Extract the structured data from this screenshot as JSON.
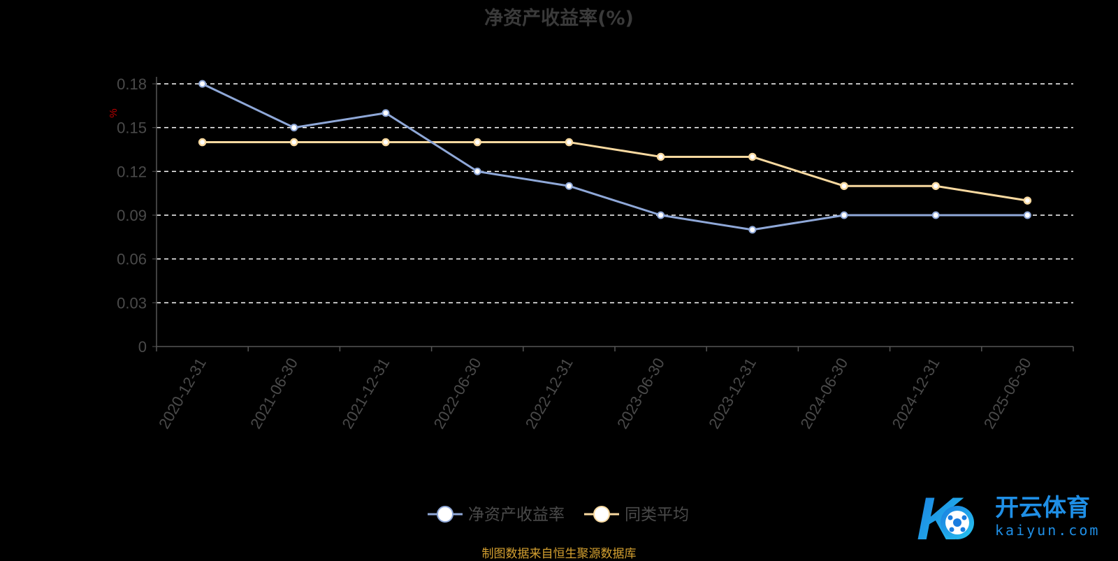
{
  "chart_data": {
    "type": "line",
    "title": "净资产收益率(%)",
    "ylabel": "%",
    "xlabel": "",
    "categories": [
      "2020-12-31",
      "2021-06-30",
      "2021-12-31",
      "2022-06-30",
      "2022-12-31",
      "2023-06-30",
      "2023-12-31",
      "2024-06-30",
      "2024-12-31",
      "2025-06-30"
    ],
    "ylim": [
      0,
      0.18
    ],
    "yticks": [
      "0",
      "0.03",
      "0.06",
      "0.09",
      "0.12",
      "0.15",
      "0.18"
    ],
    "grid": true,
    "legend_position": "bottom",
    "series": [
      {
        "name": "净资产收益率",
        "color": "#8fa8d8",
        "values": [
          0.18,
          0.15,
          0.16,
          0.12,
          0.11,
          0.09,
          0.08,
          0.09,
          0.09,
          0.09
        ]
      },
      {
        "name": "同类平均",
        "color": "#f8d9a0",
        "values": [
          0.14,
          0.14,
          0.14,
          0.14,
          0.14,
          0.13,
          0.13,
          0.11,
          0.11,
          0.1
        ]
      }
    ]
  },
  "source_note": "制图数据来自恒生聚源数据库",
  "watermark": {
    "brand": "开云体育",
    "domain": "kaiyun.com",
    "logo_letter": "K"
  }
}
